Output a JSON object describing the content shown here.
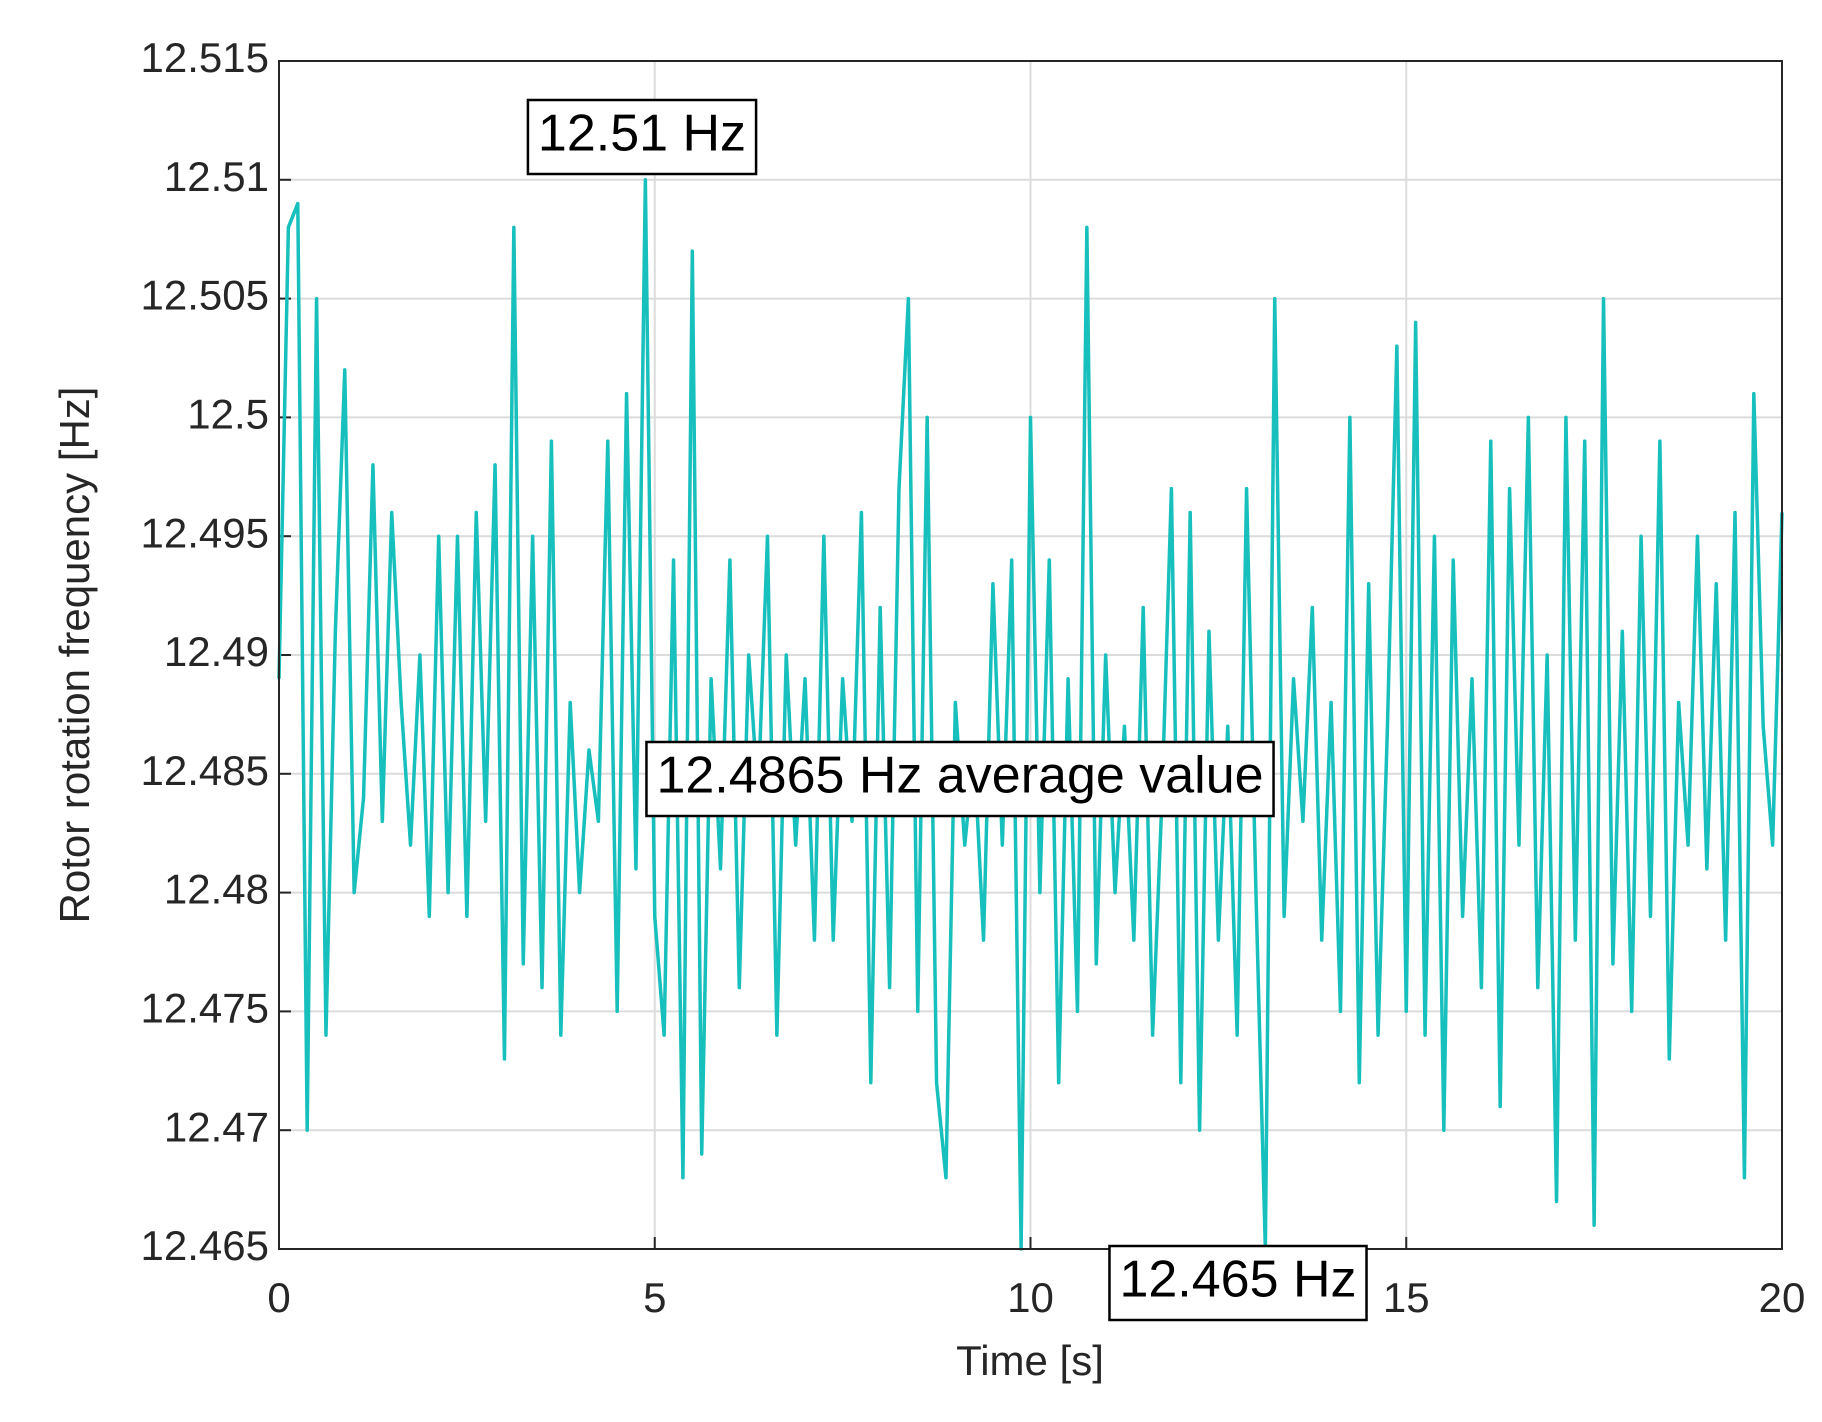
{
  "chart_data": {
    "type": "line",
    "xlabel": "Time [s]",
    "ylabel": "Rotor rotation frequency [Hz]",
    "color": "#17bfbd",
    "grid": true,
    "xlim": [
      0,
      20
    ],
    "xticks": [
      0,
      5,
      10,
      15,
      20
    ],
    "ylim": [
      12.465,
      12.515
    ],
    "yticks": [
      12.465,
      12.47,
      12.475,
      12.48,
      12.485,
      12.49,
      12.495,
      12.5,
      12.505,
      12.51,
      12.515
    ],
    "annotations": [
      {
        "text": "12.51 Hz"
      },
      {
        "text": "12.4865 Hz average value"
      },
      {
        "text": "12.465 Hz"
      }
    ],
    "x": [
      0,
      0.125,
      0.25,
      0.375,
      0.5,
      0.625,
      0.75,
      0.875,
      1,
      1.125,
      1.25,
      1.375,
      1.5,
      1.625,
      1.75,
      1.875,
      2,
      2.125,
      2.25,
      2.375,
      2.5,
      2.625,
      2.75,
      2.875,
      3,
      3.125,
      3.25,
      3.375,
      3.5,
      3.625,
      3.75,
      3.875,
      4,
      4.125,
      4.25,
      4.375,
      4.5,
      4.625,
      4.75,
      4.875,
      5,
      5.125,
      5.25,
      5.375,
      5.5,
      5.625,
      5.75,
      5.875,
      6,
      6.125,
      6.25,
      6.375,
      6.5,
      6.625,
      6.75,
      6.875,
      7,
      7.125,
      7.25,
      7.375,
      7.5,
      7.625,
      7.75,
      7.875,
      8,
      8.125,
      8.25,
      8.375,
      8.5,
      8.625,
      8.75,
      8.875,
      9,
      9.125,
      9.25,
      9.375,
      9.5,
      9.625,
      9.75,
      9.875,
      10,
      10.125,
      10.25,
      10.375,
      10.5,
      10.625,
      10.75,
      10.875,
      11,
      11.125,
      11.25,
      11.375,
      11.5,
      11.625,
      11.75,
      11.875,
      12,
      12.125,
      12.25,
      12.375,
      12.5,
      12.625,
      12.75,
      12.875,
      13,
      13.125,
      13.25,
      13.375,
      13.5,
      13.625,
      13.75,
      13.875,
      14,
      14.125,
      14.25,
      14.375,
      14.5,
      14.625,
      14.75,
      14.875,
      15,
      15.125,
      15.25,
      15.375,
      15.5,
      15.625,
      15.75,
      15.875,
      16,
      16.125,
      16.25,
      16.375,
      16.5,
      16.625,
      16.75,
      16.875,
      17,
      17.125,
      17.25,
      17.375,
      17.5,
      17.625,
      17.75,
      17.875,
      18,
      18.125,
      18.25,
      18.375,
      18.5,
      18.625,
      18.75,
      18.875,
      19,
      19.125,
      19.25,
      19.375,
      19.5,
      19.625,
      19.75,
      19.875,
      20
    ],
    "values": [
      12.489,
      12.508,
      12.509,
      12.47,
      12.505,
      12.474,
      12.491,
      12.502,
      12.48,
      12.484,
      12.498,
      12.483,
      12.496,
      12.488,
      12.482,
      12.49,
      12.479,
      12.495,
      12.48,
      12.495,
      12.479,
      12.496,
      12.483,
      12.498,
      12.473,
      12.508,
      12.477,
      12.495,
      12.476,
      12.499,
      12.474,
      12.488,
      12.48,
      12.486,
      12.483,
      12.499,
      12.475,
      12.501,
      12.481,
      12.51,
      12.479,
      12.474,
      12.494,
      12.468,
      12.507,
      12.469,
      12.489,
      12.481,
      12.494,
      12.476,
      12.49,
      12.484,
      12.495,
      12.474,
      12.49,
      12.482,
      12.489,
      12.478,
      12.495,
      12.478,
      12.489,
      12.483,
      12.496,
      12.472,
      12.492,
      12.476,
      12.497,
      12.505,
      12.475,
      12.5,
      12.472,
      12.468,
      12.488,
      12.482,
      12.486,
      12.478,
      12.493,
      12.482,
      12.494,
      12.465,
      12.5,
      12.48,
      12.494,
      12.472,
      12.489,
      12.475,
      12.508,
      12.477,
      12.49,
      12.48,
      12.487,
      12.478,
      12.492,
      12.474,
      12.484,
      12.497,
      12.472,
      12.496,
      12.47,
      12.491,
      12.478,
      12.487,
      12.474,
      12.497,
      12.48,
      12.465,
      12.505,
      12.479,
      12.489,
      12.483,
      12.492,
      12.478,
      12.488,
      12.475,
      12.5,
      12.472,
      12.493,
      12.474,
      12.487,
      12.503,
      12.475,
      12.504,
      12.474,
      12.495,
      12.47,
      12.494,
      12.479,
      12.489,
      12.476,
      12.499,
      12.471,
      12.497,
      12.482,
      12.5,
      12.476,
      12.49,
      12.467,
      12.5,
      12.478,
      12.499,
      12.466,
      12.505,
      12.477,
      12.491,
      12.475,
      12.495,
      12.479,
      12.499,
      12.473,
      12.488,
      12.482,
      12.495,
      12.481,
      12.493,
      12.478,
      12.496,
      12.468,
      12.501,
      12.487,
      12.482,
      12.496
    ]
  }
}
